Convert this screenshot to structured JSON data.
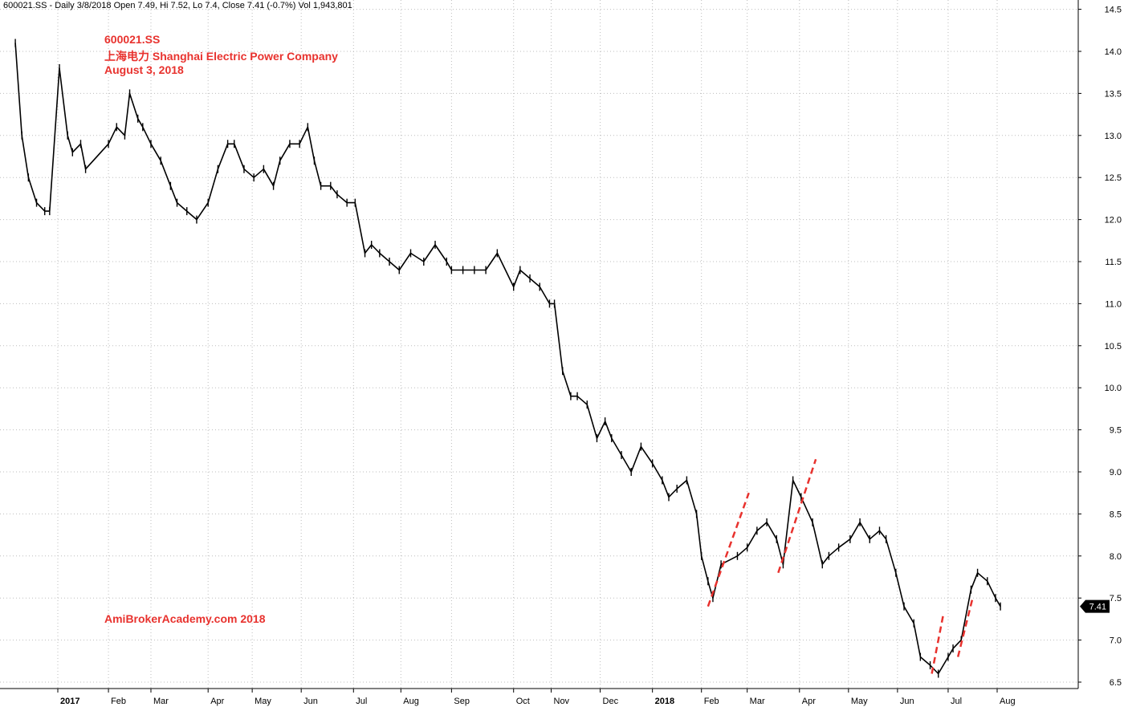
{
  "header": {
    "info": "600021.SS - Daily 3/8/2018 Open 7.49, Hi 7.52, Lo 7.4, Close 7.41 (-0.7%) Vol 1,943,801"
  },
  "annotation": {
    "ticker": "600021.SS",
    "company": "上海电力 Shanghai Electric Power Company",
    "date": "August 3, 2018"
  },
  "watermark": "AmiBrokerAcademy.com  2018",
  "colors": {
    "annotation": "#e8322e",
    "price": "#000000",
    "grid": "#bdbdbd",
    "trendline": "#e8322e"
  },
  "chart_data": {
    "type": "line",
    "title": "",
    "xlabel": "",
    "ylabel": "",
    "grid": true,
    "y_axis_position": "right",
    "ylim": [
      6.4,
      14.6
    ],
    "y_ticks": [
      6.5,
      7.0,
      7.5,
      8.0,
      8.5,
      9.0,
      9.5,
      10.0,
      10.5,
      11.0,
      11.5,
      12.0,
      12.5,
      13.0,
      13.5,
      14.0,
      14.5
    ],
    "y_tick_labels": [
      "6.5",
      "7.0",
      "7.5",
      "8.0",
      "8.5",
      "9.0",
      "9.5",
      "10.0",
      "10.5",
      "11.0",
      "11.5",
      "12.0",
      "12.5",
      "13.0",
      "13.5",
      "14.0",
      "14.5"
    ],
    "x_ticks": [
      "2017-01-03",
      "2017-02-03",
      "2017-03-01",
      "2017-04-05",
      "2017-05-02",
      "2017-06-01",
      "2017-07-03",
      "2017-08-01",
      "2017-09-01",
      "2017-10-09",
      "2017-11-01",
      "2017-12-01",
      "2018-01-02",
      "2018-02-01",
      "2018-03-01",
      "2018-04-02",
      "2018-05-02",
      "2018-06-01",
      "2018-07-02",
      "2018-08-01"
    ],
    "x_tick_labels": [
      "2017",
      "Feb",
      "Mar",
      "Apr",
      "May",
      "Jun",
      "Jul",
      "Aug",
      "Sep",
      "Oct",
      "Nov",
      "Dec",
      "2018",
      "Feb",
      "Mar",
      "Apr",
      "May",
      "Jun",
      "Jul",
      "Aug"
    ],
    "x_tick_bold": [
      true,
      false,
      false,
      false,
      false,
      false,
      false,
      false,
      false,
      false,
      false,
      false,
      true,
      false,
      false,
      false,
      false,
      false,
      false,
      false
    ],
    "series": [
      {
        "x": [
          "2016-12-08",
          "2016-12-12",
          "2016-12-16",
          "2016-12-21",
          "2016-12-26",
          "2016-12-29",
          "2017-01-04",
          "2017-01-09",
          "2017-01-12",
          "2017-01-17",
          "2017-01-20",
          "2017-02-03",
          "2017-02-08",
          "2017-02-13",
          "2017-02-16",
          "2017-02-21",
          "2017-02-24",
          "2017-03-01",
          "2017-03-07",
          "2017-03-13",
          "2017-03-17",
          "2017-03-23",
          "2017-03-29",
          "2017-04-05",
          "2017-04-11",
          "2017-04-17",
          "2017-04-21",
          "2017-04-27",
          "2017-05-03",
          "2017-05-09",
          "2017-05-15",
          "2017-05-19",
          "2017-05-25",
          "2017-05-31",
          "2017-06-05",
          "2017-06-09",
          "2017-06-13",
          "2017-06-19",
          "2017-06-23",
          "2017-06-29",
          "2017-07-04",
          "2017-07-10",
          "2017-07-14",
          "2017-07-19",
          "2017-07-25",
          "2017-07-31",
          "2017-08-07",
          "2017-08-15",
          "2017-08-22",
          "2017-08-29",
          "2017-09-01",
          "2017-09-08",
          "2017-09-15",
          "2017-09-22",
          "2017-09-29",
          "2017-10-09",
          "2017-10-13",
          "2017-10-19",
          "2017-10-25",
          "2017-10-31",
          "2017-11-03",
          "2017-11-08",
          "2017-11-13",
          "2017-11-17",
          "2017-11-23",
          "2017-11-29",
          "2017-12-04",
          "2017-12-08",
          "2017-12-14",
          "2017-12-20",
          "2017-12-26",
          "2018-01-02",
          "2018-01-08",
          "2018-01-12",
          "2018-01-17",
          "2018-01-23",
          "2018-01-29",
          "2018-02-01",
          "2018-02-05",
          "2018-02-08",
          "2018-02-13",
          "2018-02-23",
          "2018-03-01",
          "2018-03-07",
          "2018-03-13",
          "2018-03-19",
          "2018-03-23",
          "2018-03-29",
          "2018-04-03",
          "2018-04-10",
          "2018-04-16",
          "2018-04-20",
          "2018-04-26",
          "2018-05-03",
          "2018-05-09",
          "2018-05-15",
          "2018-05-21",
          "2018-05-25",
          "2018-05-31",
          "2018-06-05",
          "2018-06-11",
          "2018-06-15",
          "2018-06-21",
          "2018-06-26",
          "2018-07-02",
          "2018-07-05",
          "2018-07-10",
          "2018-07-16",
          "2018-07-20",
          "2018-07-26",
          "2018-07-31",
          "2018-08-03"
        ],
        "values": [
          14.1,
          13.0,
          12.5,
          12.2,
          12.1,
          12.1,
          13.8,
          13.0,
          12.8,
          12.9,
          12.6,
          12.9,
          13.1,
          13.0,
          13.5,
          13.2,
          13.1,
          12.9,
          12.7,
          12.4,
          12.2,
          12.1,
          12.0,
          12.2,
          12.6,
          12.9,
          12.9,
          12.6,
          12.5,
          12.6,
          12.4,
          12.7,
          12.9,
          12.9,
          13.1,
          12.7,
          12.4,
          12.4,
          12.3,
          12.2,
          12.2,
          11.6,
          11.7,
          11.6,
          11.5,
          11.4,
          11.6,
          11.5,
          11.7,
          11.5,
          11.4,
          11.4,
          11.4,
          11.4,
          11.6,
          11.2,
          11.4,
          11.3,
          11.2,
          11.0,
          11.0,
          10.2,
          9.9,
          9.9,
          9.8,
          9.4,
          9.6,
          9.4,
          9.2,
          9.0,
          9.3,
          9.1,
          8.9,
          8.7,
          8.8,
          8.9,
          8.5,
          8.0,
          7.7,
          7.5,
          7.9,
          8.0,
          8.1,
          8.3,
          8.4,
          8.2,
          7.9,
          8.9,
          8.7,
          8.4,
          7.9,
          8.0,
          8.1,
          8.2,
          8.4,
          8.2,
          8.3,
          8.2,
          7.8,
          7.4,
          7.2,
          6.8,
          6.7,
          6.6,
          6.8,
          6.9,
          7.0,
          7.6,
          7.8,
          7.7,
          7.5,
          7.4
        ],
        "last_value": "7.41"
      }
    ],
    "trendlines": [
      {
        "x": [
          "2018-02-05",
          "2018-03-02"
        ],
        "y": [
          7.4,
          8.75
        ]
      },
      {
        "x": [
          "2018-03-20",
          "2018-04-12"
        ],
        "y": [
          7.8,
          9.15
        ]
      },
      {
        "x": [
          "2018-06-22",
          "2018-06-29"
        ],
        "y": [
          6.6,
          7.3
        ]
      },
      {
        "x": [
          "2018-07-08",
          "2018-07-17"
        ],
        "y": [
          6.8,
          7.5
        ]
      }
    ]
  }
}
